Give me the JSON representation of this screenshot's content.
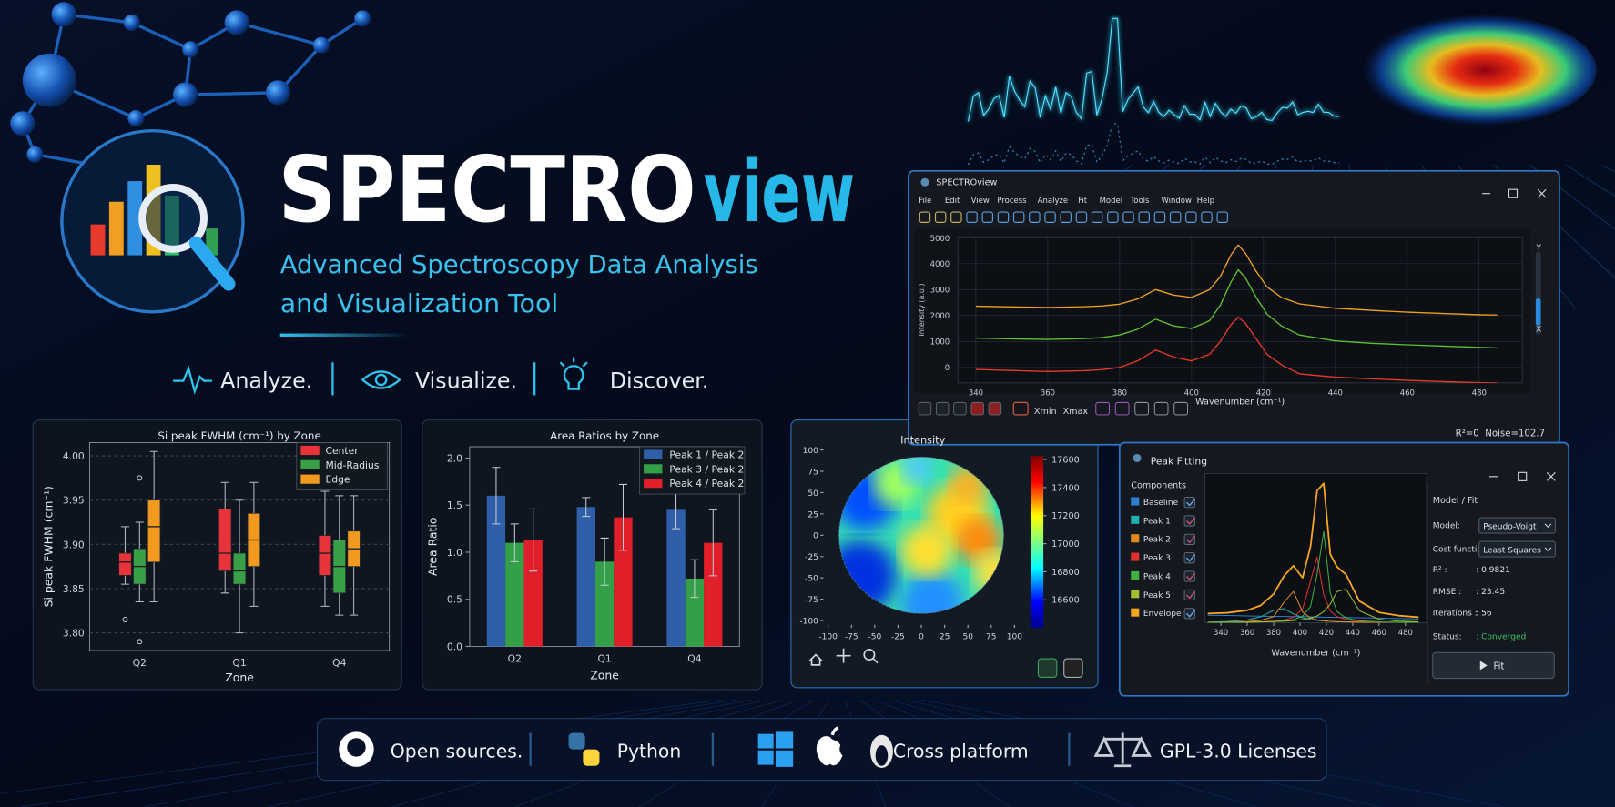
{
  "header": {
    "title": "SPECTRO",
    "title_accent": "view",
    "subtitle_lines": [
      "Advanced Spectroscopy Data Analysis",
      "and Visualization Tool"
    ]
  },
  "slogans": [
    "Analyze.",
    "Visualize.",
    "Discover."
  ],
  "footer": [
    "Open sources.",
    "Python",
    "Cross platform",
    "GPL-3.0 Licenses"
  ],
  "box_chart": {
    "type": "box",
    "title": "Si peak FWHM (cm⁻¹) by Zone",
    "xlabel": "Zone",
    "ylabel": "Si peak FWHM (cm⁻¹)",
    "categories": [
      "Q2",
      "Q1",
      "Q4"
    ],
    "ylim": [
      3.78,
      4.015
    ],
    "yticks": [
      {
        "value": 3.8,
        "label": "3.80"
      },
      3.85,
      {
        "value": 3.9,
        "label": "3.90"
      },
      3.95,
      {
        "value": 4.0,
        "label": "4.00"
      }
    ],
    "grid": true,
    "legend": "upper right",
    "series": [
      {
        "name": "Center",
        "color": "#e8333a",
        "boxes": [
          {
            "low": 3.855,
            "q1": 3.865,
            "median": 3.88,
            "q3": 3.89,
            "high": 3.92,
            "outliers": [
              3.815
            ]
          },
          {
            "low": 3.845,
            "q1": 3.87,
            "median": 3.89,
            "q3": 3.94,
            "high": 3.97,
            "outliers": []
          },
          {
            "low": 3.83,
            "q1": 3.865,
            "median": 3.89,
            "q3": 3.91,
            "high": 3.96,
            "outliers": []
          }
        ]
      },
      {
        "name": "Mid-Radius",
        "color": "#3aa048",
        "boxes": [
          {
            "low": 3.835,
            "q1": 3.855,
            "median": 3.875,
            "q3": 3.895,
            "high": 3.925,
            "outliers": [
              3.975,
              3.79
            ]
          },
          {
            "low": 3.8,
            "q1": 3.855,
            "median": 3.87,
            "q3": 3.89,
            "high": 3.95,
            "outliers": []
          },
          {
            "low": 3.82,
            "q1": 3.845,
            "median": 3.875,
            "q3": 3.905,
            "high": 3.955,
            "outliers": []
          }
        ]
      },
      {
        "name": "Edge",
        "color": "#f29a1f",
        "boxes": [
          {
            "low": 3.835,
            "q1": 3.88,
            "median": 3.92,
            "q3": 3.95,
            "high": 4.005,
            "outliers": []
          },
          {
            "low": 3.83,
            "q1": 3.875,
            "median": 3.905,
            "q3": 3.935,
            "high": 3.97,
            "outliers": []
          },
          {
            "low": 3.82,
            "q1": 3.875,
            "median": 3.895,
            "q3": 3.915,
            "high": 3.955,
            "outliers": []
          }
        ]
      }
    ]
  },
  "bar_chart": {
    "type": "bar",
    "title": "Area Ratios by Zone",
    "xlabel": "Zone",
    "ylabel": "Area Ratio",
    "categories": [
      "Q2",
      "Q1",
      "Q4"
    ],
    "ylim": [
      0,
      2.12
    ],
    "yticks": [
      {
        "value": 0,
        "label": "0.0"
      },
      0.5,
      {
        "value": 1.0,
        "label": "1.0"
      },
      1.5,
      {
        "value": 2.0,
        "label": "2.0"
      }
    ],
    "legend": "upper right",
    "series": [
      {
        "name": "Peak 1 / Peak 2",
        "color": "#2f5fa8",
        "values": [
          1.6,
          1.48,
          1.45
        ],
        "errors": [
          0.3,
          0.1,
          0.2
        ]
      },
      {
        "name": "Peak 3 / Peak 2",
        "color": "#33a047",
        "values": [
          1.1,
          0.9,
          0.72
        ],
        "errors": [
          0.2,
          0.25,
          0.2
        ]
      },
      {
        "name": "Peak 4 / Peak 2",
        "color": "#e11f2a",
        "values": [
          1.13,
          1.37,
          1.1
        ],
        "errors": [
          0.33,
          0.35,
          0.35
        ]
      }
    ]
  },
  "wafer_map": {
    "type": "heatmap",
    "title": "Intensity",
    "xlim": [
      -105,
      105
    ],
    "xticks": [
      -100,
      -75,
      -50,
      -25,
      0,
      25,
      50,
      75,
      100
    ],
    "ylim": [
      -105,
      105
    ],
    "yticks": [
      -100,
      -75,
      -50,
      -25,
      0,
      25,
      50,
      75,
      100
    ],
    "clim": [
      16400,
      17625
    ],
    "cticks": [
      16600,
      16800,
      17000,
      17200,
      17400,
      17600
    ]
  },
  "main_window": {
    "title": "SPECTROview",
    "menu": [
      "File",
      "Edit",
      "View",
      "Process",
      "Analyze",
      "Fit",
      "Model",
      "Tools",
      "Window",
      "Help"
    ],
    "toolbar": [
      "Xmin",
      "Xmax"
    ],
    "status": "R²=0  Noise=102.7",
    "side_labels": [
      "Y",
      "X"
    ],
    "chart": {
      "type": "line",
      "xlabel": "Wavenumber (cm⁻¹)",
      "ylabel": "Intensity (a.u.)",
      "xlim": [
        335,
        492
      ],
      "xticks": [
        340,
        360,
        380,
        400,
        420,
        440,
        460,
        480
      ],
      "ylim": [
        -600,
        5040
      ],
      "yticks": [
        0,
        1000,
        2000,
        3000,
        4000,
        5000
      ],
      "grid": true,
      "x": [
        340,
        350,
        360,
        370,
        375,
        380,
        385,
        390,
        395,
        400,
        405,
        408,
        411,
        413,
        415,
        418,
        421,
        425,
        430,
        440,
        450,
        460,
        470,
        480,
        485
      ],
      "series": [
        {
          "color": "#f0a020",
          "values": [
            2360,
            2335,
            2310,
            2340,
            2370,
            2440,
            2640,
            3000,
            2790,
            2700,
            3000,
            3500,
            4350,
            4720,
            4400,
            3700,
            3100,
            2700,
            2450,
            2280,
            2200,
            2130,
            2080,
            2030,
            2020
          ]
        },
        {
          "color": "#5cc030",
          "values": [
            1130,
            1100,
            1080,
            1110,
            1150,
            1250,
            1470,
            1860,
            1600,
            1500,
            1800,
            2400,
            3300,
            3770,
            3450,
            2700,
            2050,
            1600,
            1250,
            1020,
            930,
            870,
            820,
            770,
            750
          ]
        },
        {
          "color": "#e83a2a",
          "values": [
            -80,
            -120,
            -160,
            -130,
            -90,
            0,
            250,
            670,
            400,
            250,
            500,
            1000,
            1650,
            1940,
            1700,
            1100,
            500,
            100,
            -250,
            -380,
            -440,
            -500,
            -550,
            -590,
            -600
          ]
        }
      ]
    }
  },
  "fit_window": {
    "title": "Peak Fitting",
    "components_label": "Components",
    "panel_title": "Model / Fit",
    "fields": [
      {
        "label": "Model:",
        "value": "Pseudo-Voigt"
      },
      {
        "label": "Cost function:",
        "value": "Least Squares"
      },
      {
        "label": "R² :",
        "value": ": 0.9821"
      },
      {
        "label": "RMSE :",
        "value": ": 23.45"
      },
      {
        "label": "Iterations :",
        "value": ": 56"
      },
      {
        "label": "Status:",
        "value": ": Converged"
      }
    ],
    "button": "Fit",
    "chart": {
      "type": "line",
      "xlabel": "Wavenumber (cm⁻¹)",
      "xlim": [
        328,
        496
      ],
      "xticks": [
        340,
        360,
        380,
        400,
        420,
        440,
        460,
        480
      ],
      "ylim": [
        0,
        1.2
      ],
      "x": [
        330,
        345,
        360,
        370,
        380,
        388,
        395,
        402,
        408,
        413,
        418,
        423,
        428,
        435,
        445,
        460,
        475,
        490
      ],
      "series": [
        {
          "name": "Baseline",
          "color": "#2a7fd0",
          "values": [
            0.06,
            0.058,
            0.055,
            0.053,
            0.051,
            0.05,
            0.049,
            0.048,
            0.047,
            0.046,
            0.045,
            0.044,
            0.043,
            0.042,
            0.04,
            0.037,
            0.034,
            0.03
          ]
        },
        {
          "name": "Peak 1",
          "color": "#20b0b0",
          "values": [
            0.005,
            0.01,
            0.022,
            0.047,
            0.1,
            0.113,
            0.071,
            0.04,
            0.026,
            0.019,
            0.014,
            0.011,
            0.009,
            0.007,
            0.005,
            0.003,
            0.002,
            0.001
          ]
        },
        {
          "name": "Peak 2",
          "color": "#e08a20",
          "values": [
            0.003,
            0.004,
            0.009,
            0.018,
            0.049,
            0.166,
            0.252,
            0.086,
            0.039,
            0.023,
            0.015,
            0.011,
            0.008,
            0.006,
            0.004,
            0.002,
            0.001,
            0.001
          ]
        },
        {
          "name": "Peak 3",
          "color": "#e03030",
          "values": [
            0.002,
            0.003,
            0.005,
            0.008,
            0.013,
            0.022,
            0.044,
            0.11,
            0.335,
            0.529,
            0.225,
            0.094,
            0.049,
            0.025,
            0.012,
            0.006,
            0.003,
            0.002
          ]
        },
        {
          "name": "Peak 4",
          "color": "#40b040",
          "values": [
            0.002,
            0.002,
            0.004,
            0.006,
            0.009,
            0.015,
            0.025,
            0.052,
            0.129,
            0.39,
            0.734,
            0.24,
            0.091,
            0.037,
            0.016,
            0.007,
            0.004,
            0.003
          ]
        },
        {
          "name": "Peak 5",
          "color": "#a0c030",
          "values": [
            0.002,
            0.003,
            0.005,
            0.006,
            0.009,
            0.012,
            0.017,
            0.025,
            0.037,
            0.055,
            0.088,
            0.15,
            0.25,
            0.27,
            0.097,
            0.028,
            0.013,
            0.007
          ]
        },
        {
          "name": "Envelope",
          "color": "#f5a623",
          "values": [
            0.074,
            0.08,
            0.1,
            0.138,
            0.231,
            0.378,
            0.458,
            0.361,
            0.613,
            1.062,
            1.121,
            0.55,
            0.45,
            0.387,
            0.174,
            0.083,
            0.057,
            0.044
          ]
        }
      ]
    }
  }
}
